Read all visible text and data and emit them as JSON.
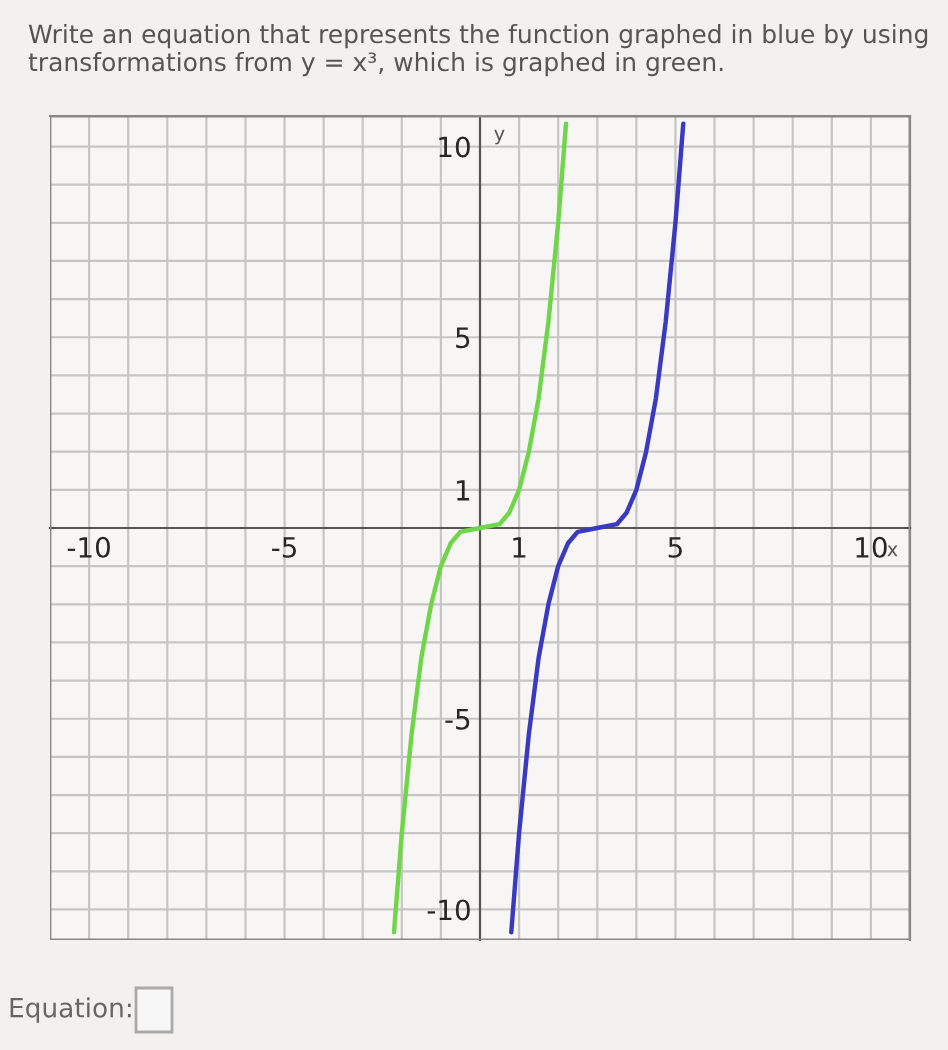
{
  "chart_data": {
    "type": "line",
    "title": "Write an equation that represents the function graphed in blue by using transformations from y = x³, which is graphed in green.",
    "xlabel": "x",
    "ylabel": "y",
    "annotations": [
      "Equation:"
    ],
    "series": [
      {
        "color": "#6fd64a",
        "x": [
          -2.2,
          -2,
          -1.75,
          -1.5,
          -1.25,
          -1,
          -0.75,
          -0.5,
          0,
          0.5,
          0.75,
          1,
          1.25,
          1.5,
          1.75,
          2,
          2.2
        ],
        "values": [
          -10.6,
          -8,
          -5.4,
          -3.4,
          -2,
          -1,
          -0.4,
          -0.1,
          0,
          0.1,
          0.4,
          1,
          2,
          3.4,
          5.4,
          8,
          10.6
        ]
      },
      {
        "color": "#3a3ac0",
        "x": [
          0.8,
          1,
          1.25,
          1.5,
          1.75,
          2,
          2.25,
          2.5,
          3,
          3.5,
          3.75,
          4,
          4.25,
          4.5,
          4.75,
          5,
          5.2
        ],
        "values": [
          -10.6,
          -8,
          -5.4,
          -3.4,
          -2,
          -1,
          -0.4,
          -0.1,
          0,
          0.1,
          0.4,
          1,
          2,
          3.4,
          5.4,
          8,
          10.6
        ]
      }
    ],
    "xlim": [
      -11,
      11
    ],
    "ylim": [
      -10.8,
      10.8
    ],
    "xticks": [
      -10,
      {
        "value": -9,
        "label": null
      },
      {
        "value": -8,
        "label": null
      },
      {
        "value": -7,
        "label": null
      },
      {
        "value": -6,
        "label": null
      },
      -5,
      {
        "value": -4,
        "label": null
      },
      {
        "value": -3,
        "label": null
      },
      {
        "value": -2,
        "label": null
      },
      {
        "value": -1,
        "label": null
      },
      1,
      {
        "value": 2,
        "label": null
      },
      {
        "value": 3,
        "label": null
      },
      {
        "value": 4,
        "label": null
      },
      5,
      {
        "value": 6,
        "label": null
      },
      {
        "value": 7,
        "label": null
      },
      {
        "value": 8,
        "label": null
      },
      {
        "value": 9,
        "label": null
      },
      10
    ],
    "yticks": [
      -10,
      {
        "value": -9,
        "label": null
      },
      {
        "value": -8,
        "label": null
      },
      {
        "value": -7,
        "label": null
      },
      {
        "value": -6,
        "label": null
      },
      -5,
      {
        "value": -4,
        "label": null
      },
      {
        "value": -3,
        "label": null
      },
      {
        "value": -2,
        "label": null
      },
      {
        "value": -1,
        "label": null
      },
      1,
      {
        "value": 2,
        "label": null
      },
      {
        "value": 3,
        "label": null
      },
      {
        "value": 4,
        "label": null
      },
      5,
      {
        "value": 6,
        "label": null
      },
      {
        "value": 7,
        "label": null
      },
      {
        "value": 8,
        "label": null
      },
      {
        "value": 9,
        "label": null
      },
      10
    ],
    "grid": true,
    "marker": "none",
    "line_style": "solid",
    "legend": false
  }
}
